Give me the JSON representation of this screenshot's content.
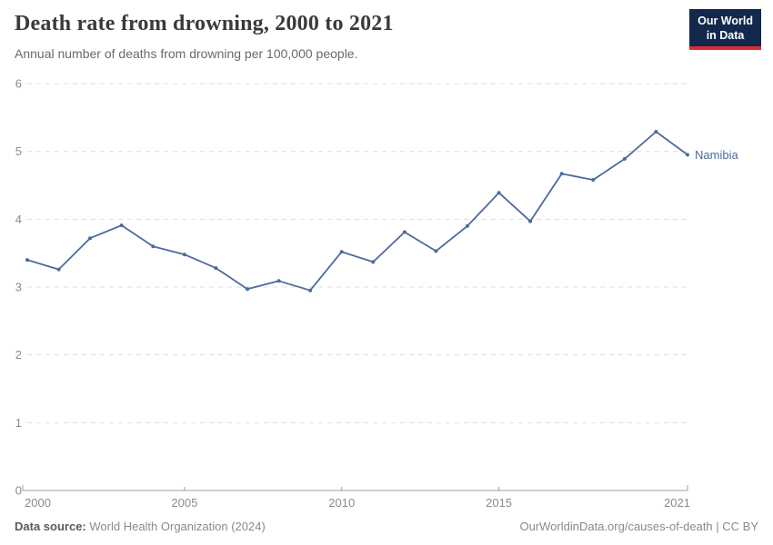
{
  "header": {
    "title": "Death rate from drowning, 2000 to 2021",
    "subtitle": "Annual number of deaths from drowning per 100,000 people."
  },
  "logo": {
    "line1": "Our World",
    "line2": "in Data",
    "background_color": "#12294d",
    "accent_color": "#dc2c35"
  },
  "chart_data": {
    "type": "line",
    "title": "Death rate from drowning, 2000 to 2021",
    "xlabel": "",
    "ylabel": "",
    "x": [
      2000,
      2001,
      2002,
      2003,
      2004,
      2005,
      2006,
      2007,
      2008,
      2009,
      2010,
      2011,
      2012,
      2013,
      2014,
      2015,
      2016,
      2017,
      2018,
      2019,
      2020,
      2021
    ],
    "series": [
      {
        "name": "Namibia",
        "color": "#4C6A9C",
        "values": [
          3.4,
          3.26,
          3.72,
          3.91,
          3.6,
          3.48,
          3.28,
          2.97,
          3.09,
          2.95,
          3.52,
          3.37,
          3.81,
          3.53,
          3.9,
          4.39,
          3.97,
          4.67,
          4.58,
          4.89,
          5.29,
          4.95
        ]
      }
    ],
    "ylim": [
      0,
      6
    ],
    "yticks": [
      0,
      1,
      2,
      3,
      4,
      5,
      6
    ],
    "xticks": [
      2000,
      2005,
      2010,
      2015,
      2021
    ],
    "grid": true,
    "gridline_color": "#dedede",
    "axis_color": "#9e9e9e",
    "tick_label_color": "#8b8b8b",
    "legend_position": "end-of-line-label",
    "marker": "circle"
  },
  "footer": {
    "source_label": "Data source:",
    "source_value": "World Health Organization (2024)",
    "license": "OurWorldinData.org/causes-of-death | CC BY"
  }
}
